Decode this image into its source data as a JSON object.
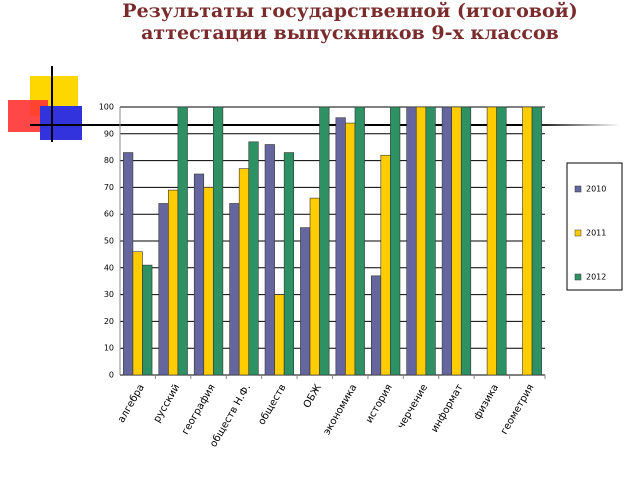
{
  "chart_data": {
    "type": "bar",
    "title": [
      "Результаты государственной (итоговой)",
      "аттестации выпускников 9-х классов"
    ],
    "categories": [
      "алгебра",
      "русский",
      "география",
      "обществ Н.Ф.",
      "обществ",
      "ОБЖ",
      "экономика",
      "история",
      "черчение",
      "информат",
      "физика",
      "геометрия"
    ],
    "series": [
      {
        "name": "2010",
        "color": "#66669e",
        "values": [
          83,
          64,
          75,
          64,
          86,
          55,
          96,
          37,
          100,
          100,
          0,
          0
        ]
      },
      {
        "name": "2011",
        "color": "#ffcc00",
        "values": [
          46,
          69,
          70,
          77,
          30,
          66,
          94,
          82,
          100,
          100,
          100,
          100
        ]
      },
      {
        "name": "2012",
        "color": "#2e9163",
        "values": [
          41,
          100,
          100,
          87,
          83,
          100,
          100,
          100,
          100,
          100,
          100,
          100
        ]
      }
    ],
    "ylim": [
      0,
      100
    ],
    "yticks": [
      0,
      10,
      20,
      30,
      40,
      50,
      60,
      70,
      80,
      90,
      100
    ],
    "grid": true,
    "legend": "right"
  }
}
